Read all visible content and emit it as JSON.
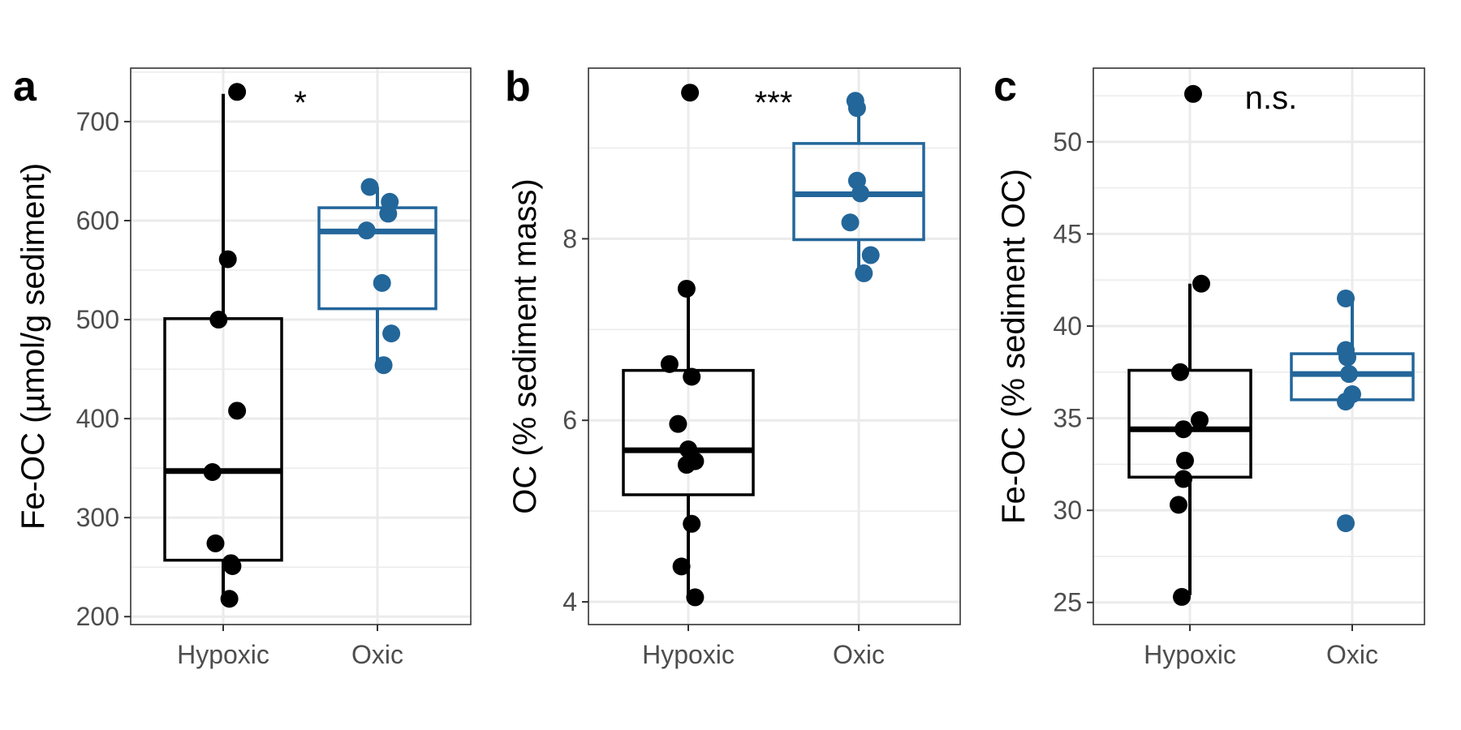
{
  "chart_data": [
    {
      "type": "box",
      "panel_label": "a",
      "ylabel": "Fe-OC (µmol/g sediment)",
      "ylim": [
        192,
        754
      ],
      "yticks": [
        200,
        300,
        400,
        500,
        600,
        700
      ],
      "categories": [
        "Hypoxic",
        "Oxic"
      ],
      "significance": "*",
      "boxes": [
        {
          "category": "Hypoxic",
          "color": "#000000",
          "min": 220,
          "q1": 257,
          "median": 347,
          "q3": 501,
          "max": 728
        },
        {
          "category": "Oxic",
          "color": "#23669a",
          "min": 455,
          "q1": 511,
          "median": 589,
          "q3": 613,
          "max": 634
        }
      ],
      "points": [
        {
          "category": "Hypoxic",
          "jitter": 0.09,
          "y": 730
        },
        {
          "category": "Hypoxic",
          "jitter": 0.03,
          "y": 561
        },
        {
          "category": "Hypoxic",
          "jitter": -0.03,
          "y": 500
        },
        {
          "category": "Hypoxic",
          "jitter": 0.09,
          "y": 408
        },
        {
          "category": "Hypoxic",
          "jitter": -0.07,
          "y": 346
        },
        {
          "category": "Hypoxic",
          "jitter": -0.05,
          "y": 274
        },
        {
          "category": "Hypoxic",
          "jitter": 0.05,
          "y": 254
        },
        {
          "category": "Hypoxic",
          "jitter": 0.06,
          "y": 251
        },
        {
          "category": "Hypoxic",
          "jitter": 0.04,
          "y": 218
        },
        {
          "category": "Oxic",
          "jitter": -0.05,
          "y": 634
        },
        {
          "category": "Oxic",
          "jitter": 0.08,
          "y": 619
        },
        {
          "category": "Oxic",
          "jitter": 0.07,
          "y": 607
        },
        {
          "category": "Oxic",
          "jitter": -0.07,
          "y": 590
        },
        {
          "category": "Oxic",
          "jitter": 0.03,
          "y": 537
        },
        {
          "category": "Oxic",
          "jitter": 0.09,
          "y": 486
        },
        {
          "category": "Oxic",
          "jitter": 0.04,
          "y": 454
        }
      ]
    },
    {
      "type": "box",
      "panel_label": "b",
      "ylabel": "OC (% sediment mass)",
      "ylim": [
        3.75,
        9.88
      ],
      "yticks": [
        4,
        6,
        8
      ],
      "categories": [
        "Hypoxic",
        "Oxic"
      ],
      "significance": "***",
      "boxes": [
        {
          "category": "Hypoxic",
          "color": "#000000",
          "min": 4.05,
          "q1": 5.18,
          "median": 5.67,
          "q3": 6.55,
          "max": 7.45
        },
        {
          "category": "Oxic",
          "color": "#23669a",
          "min": 7.62,
          "q1": 7.99,
          "median": 8.49,
          "q3": 9.05,
          "max": 9.52
        }
      ],
      "points": [
        {
          "category": "Hypoxic",
          "jitter": 0.01,
          "y": 9.61
        },
        {
          "category": "Hypoxic",
          "jitter": -0.01,
          "y": 7.45
        },
        {
          "category": "Hypoxic",
          "jitter": -0.11,
          "y": 6.62
        },
        {
          "category": "Hypoxic",
          "jitter": 0.02,
          "y": 6.48
        },
        {
          "category": "Hypoxic",
          "jitter": -0.06,
          "y": 5.96
        },
        {
          "category": "Hypoxic",
          "jitter": 0.0,
          "y": 5.68
        },
        {
          "category": "Hypoxic",
          "jitter": 0.04,
          "y": 5.55
        },
        {
          "category": "Hypoxic",
          "jitter": -0.01,
          "y": 5.51
        },
        {
          "category": "Hypoxic",
          "jitter": 0.02,
          "y": 4.86
        },
        {
          "category": "Hypoxic",
          "jitter": -0.04,
          "y": 4.39
        },
        {
          "category": "Hypoxic",
          "jitter": 0.04,
          "y": 4.05
        },
        {
          "category": "Oxic",
          "jitter": -0.02,
          "y": 9.52
        },
        {
          "category": "Oxic",
          "jitter": -0.01,
          "y": 9.44
        },
        {
          "category": "Oxic",
          "jitter": -0.01,
          "y": 8.64
        },
        {
          "category": "Oxic",
          "jitter": 0.01,
          "y": 8.5
        },
        {
          "category": "Oxic",
          "jitter": -0.05,
          "y": 8.18
        },
        {
          "category": "Oxic",
          "jitter": 0.07,
          "y": 7.82
        },
        {
          "category": "Oxic",
          "jitter": 0.03,
          "y": 7.62
        }
      ]
    },
    {
      "type": "box",
      "panel_label": "c",
      "ylabel": "Fe-OC (% sediment OC)",
      "ylim": [
        23.8,
        54.0
      ],
      "yticks": [
        25,
        30,
        35,
        40,
        45,
        50
      ],
      "categories": [
        "Hypoxic",
        "Oxic"
      ],
      "significance": "n.s.",
      "boxes": [
        {
          "category": "Hypoxic",
          "color": "#000000",
          "min": 25.4,
          "q1": 31.8,
          "median": 34.4,
          "q3": 37.6,
          "max": 42.3
        },
        {
          "category": "Oxic",
          "color": "#23669a",
          "min": 35.8,
          "q1": 36.0,
          "median": 37.4,
          "q3": 38.5,
          "max": 41.4
        }
      ],
      "points": [
        {
          "category": "Hypoxic",
          "jitter": 0.02,
          "y": 52.6
        },
        {
          "category": "Hypoxic",
          "jitter": 0.07,
          "y": 42.3
        },
        {
          "category": "Hypoxic",
          "jitter": -0.06,
          "y": 37.5
        },
        {
          "category": "Hypoxic",
          "jitter": 0.06,
          "y": 34.9
        },
        {
          "category": "Hypoxic",
          "jitter": -0.04,
          "y": 34.4
        },
        {
          "category": "Hypoxic",
          "jitter": -0.03,
          "y": 32.7
        },
        {
          "category": "Hypoxic",
          "jitter": -0.04,
          "y": 31.7
        },
        {
          "category": "Hypoxic",
          "jitter": -0.07,
          "y": 30.3
        },
        {
          "category": "Hypoxic",
          "jitter": -0.05,
          "y": 25.3
        },
        {
          "category": "Oxic",
          "jitter": -0.04,
          "y": 41.5
        },
        {
          "category": "Oxic",
          "jitter": -0.04,
          "y": 38.7
        },
        {
          "category": "Oxic",
          "jitter": -0.03,
          "y": 38.3
        },
        {
          "category": "Oxic",
          "jitter": -0.02,
          "y": 37.4
        },
        {
          "category": "Oxic",
          "jitter": 0.0,
          "y": 36.3
        },
        {
          "category": "Oxic",
          "jitter": -0.04,
          "y": 35.9
        },
        {
          "category": "Oxic",
          "jitter": -0.04,
          "y": 29.3
        }
      ]
    }
  ]
}
